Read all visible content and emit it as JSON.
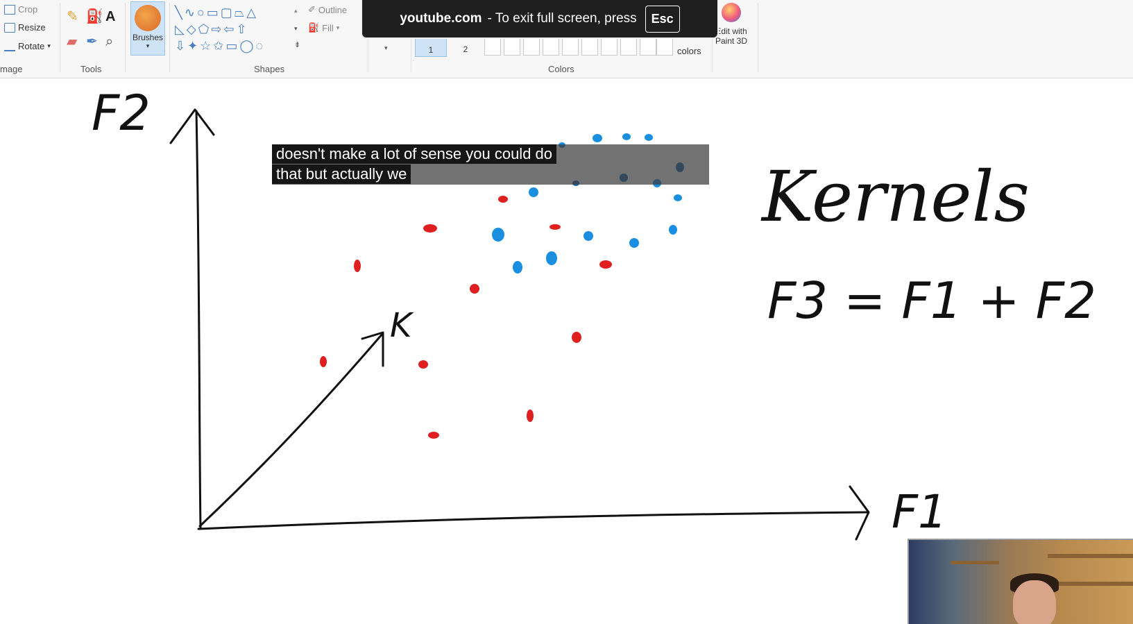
{
  "ribbon": {
    "image_group": {
      "crop": "Crop",
      "resize": "Resize",
      "rotate": "Rotate",
      "label": "mage"
    },
    "tools_group": {
      "label": "Tools",
      "text_tool": "A"
    },
    "brushes": {
      "label": "Brushes"
    },
    "shapes_group": {
      "label": "Shapes",
      "outline": "Outline",
      "fill": "Fill"
    },
    "colors_group": {
      "label": "Colors",
      "color1": "1",
      "color2": "2",
      "edit_colors": "colors"
    },
    "paint3d": {
      "line1": "Edit with",
      "line2": "Paint 3D"
    }
  },
  "fullscreen_toast": {
    "domain": "youtube.com",
    "message": "-  To exit full screen, press",
    "key": "Esc"
  },
  "caption": {
    "line1": "doesn't make a lot of sense you could do",
    "line2": "that but actually we"
  },
  "drawing": {
    "y_axis_label": "F2",
    "x_axis_label": "F1",
    "diag_axis_label": "K",
    "title": "Kernels",
    "equation": "F3 = F1 + F2",
    "red_color": "#e02020",
    "blue_color": "#1a8fe0"
  }
}
